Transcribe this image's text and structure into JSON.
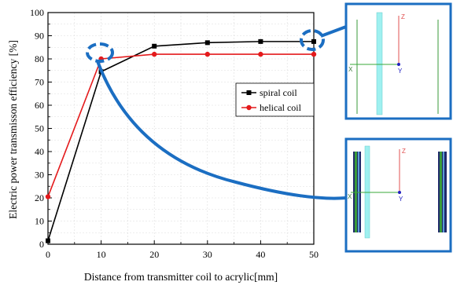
{
  "chart_data": {
    "type": "line",
    "xlabel": "Distance from transmitter coil to acrylic[mm]",
    "ylabel": "Electric power transmisson efficiency [%]",
    "xlim": [
      0,
      50
    ],
    "ylim": [
      0,
      100
    ],
    "xticks": [
      0,
      10,
      20,
      30,
      40,
      50
    ],
    "yticks": [
      0,
      10,
      20,
      30,
      40,
      50,
      60,
      70,
      80,
      90,
      100
    ],
    "grid": true,
    "legend_position": "right-middle",
    "x": [
      0,
      10,
      20,
      30,
      40,
      50
    ],
    "series": [
      {
        "name": "spiral coil",
        "values": [
          1.5,
          74.5,
          85.5,
          87,
          87.5,
          87.5
        ],
        "color": "#000000",
        "marker": "square"
      },
      {
        "name": "helical coil",
        "values": [
          20.5,
          80,
          82,
          82,
          82,
          82
        ],
        "color": "#e41a1c",
        "marker": "circle"
      }
    ]
  },
  "insets": {
    "top": {
      "axis_z": "Z",
      "axis_x": "X",
      "axis_y": "Y"
    },
    "bottom": {
      "axis_z": "Z",
      "axis_x": "X",
      "axis_y": "Y"
    }
  },
  "colors": {
    "frame_blue": "#1b6ec2",
    "acrylic": "#9ff0f0",
    "coil_green": "#3a9a3a",
    "axis_red": "#e05050",
    "axis_green": "#3aa83a",
    "axis_blue": "#2020c0"
  }
}
